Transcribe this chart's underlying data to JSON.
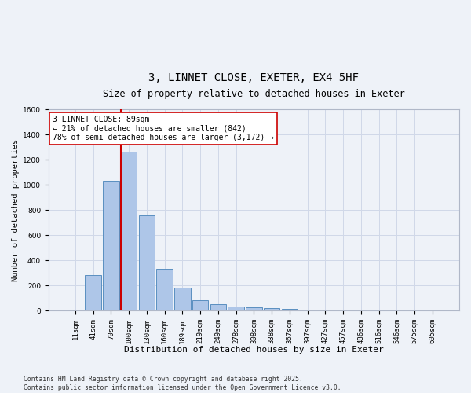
{
  "title1": "3, LINNET CLOSE, EXETER, EX4 5HF",
  "title2": "Size of property relative to detached houses in Exeter",
  "xlabel": "Distribution of detached houses by size in Exeter",
  "ylabel": "Number of detached properties",
  "categories": [
    "11sqm",
    "41sqm",
    "70sqm",
    "100sqm",
    "130sqm",
    "160sqm",
    "189sqm",
    "219sqm",
    "249sqm",
    "278sqm",
    "308sqm",
    "338sqm",
    "367sqm",
    "397sqm",
    "427sqm",
    "457sqm",
    "486sqm",
    "516sqm",
    "546sqm",
    "575sqm",
    "605sqm"
  ],
  "values": [
    5,
    280,
    1035,
    1260,
    760,
    335,
    185,
    80,
    50,
    35,
    28,
    20,
    12,
    8,
    5,
    0,
    0,
    0,
    0,
    0,
    10
  ],
  "bar_color": "#aec6e8",
  "bar_edge_color": "#5a8fc0",
  "vline_color": "#cc0000",
  "annotation_text": "3 LINNET CLOSE: 89sqm\n← 21% of detached houses are smaller (842)\n78% of semi-detached houses are larger (3,172) →",
  "annotation_box_color": "#ffffff",
  "annotation_box_edge": "#cc0000",
  "grid_color": "#d0d8e8",
  "bg_color": "#eef2f8",
  "plot_bg_color": "#eef2f8",
  "footer": "Contains HM Land Registry data © Crown copyright and database right 2025.\nContains public sector information licensed under the Open Government Licence v3.0.",
  "ylim": [
    0,
    1600
  ],
  "yticks": [
    0,
    200,
    400,
    600,
    800,
    1000,
    1200,
    1400,
    1600
  ],
  "title1_fontsize": 10,
  "title2_fontsize": 8.5,
  "xlabel_fontsize": 8,
  "ylabel_fontsize": 7.5,
  "tick_fontsize": 6.5,
  "annot_fontsize": 7,
  "footer_fontsize": 5.8
}
